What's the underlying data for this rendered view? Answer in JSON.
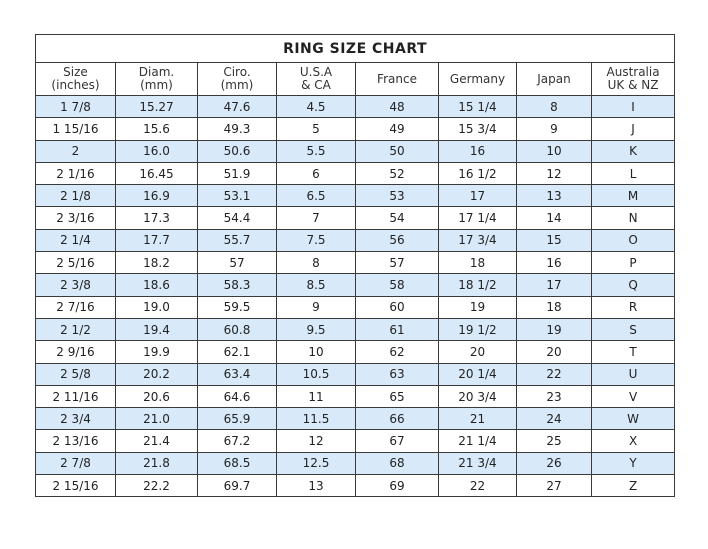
{
  "title": "RING SIZE CHART",
  "headers": [
    [
      "Size",
      "(inches)"
    ],
    [
      "Diam.",
      "(mm)"
    ],
    [
      "Ciro.",
      "(mm)"
    ],
    [
      "U.S.A",
      "& CA"
    ],
    [
      "France",
      ""
    ],
    [
      "Germany",
      ""
    ],
    [
      "Japan",
      ""
    ],
    [
      "Australia",
      "UK & NZ"
    ]
  ],
  "row_highlight_color": "#d8eafa",
  "rows": [
    [
      "1 7/8",
      "15.27",
      "47.6",
      "4.5",
      "48",
      "15 1/4",
      "8",
      "I"
    ],
    [
      "1 15/16",
      "15.6",
      "49.3",
      "5",
      "49",
      "15 3/4",
      "9",
      "J"
    ],
    [
      "2",
      "16.0",
      "50.6",
      "5.5",
      "50",
      "16",
      "10",
      "K"
    ],
    [
      "2 1/16",
      "16.45",
      "51.9",
      "6",
      "52",
      "16 1/2",
      "12",
      "L"
    ],
    [
      "2 1/8",
      "16.9",
      "53.1",
      "6.5",
      "53",
      "17",
      "13",
      "M"
    ],
    [
      "2 3/16",
      "17.3",
      "54.4",
      "7",
      "54",
      "17 1/4",
      "14",
      "N"
    ],
    [
      "2 1/4",
      "17.7",
      "55.7",
      "7.5",
      "56",
      "17 3/4",
      "15",
      "O"
    ],
    [
      "2 5/16",
      "18.2",
      "57",
      "8",
      "57",
      "18",
      "16",
      "P"
    ],
    [
      "2 3/8",
      "18.6",
      "58.3",
      "8.5",
      "58",
      "18 1/2",
      "17",
      "Q"
    ],
    [
      "2 7/16",
      "19.0",
      "59.5",
      "9",
      "60",
      "19",
      "18",
      "R"
    ],
    [
      "2 1/2",
      "19.4",
      "60.8",
      "9.5",
      "61",
      "19 1/2",
      "19",
      "S"
    ],
    [
      "2 9/16",
      "19.9",
      "62.1",
      "10",
      "62",
      "20",
      "20",
      "T"
    ],
    [
      "2 5/8",
      "20.2",
      "63.4",
      "10.5",
      "63",
      "20 1/4",
      "22",
      "U"
    ],
    [
      "2 11/16",
      "20.6",
      "64.6",
      "11",
      "65",
      "20 3/4",
      "23",
      "V"
    ],
    [
      "2 3/4",
      "21.0",
      "65.9",
      "11.5",
      "66",
      "21",
      "24",
      "W"
    ],
    [
      "2 13/16",
      "21.4",
      "67.2",
      "12",
      "67",
      "21 1/4",
      "25",
      "X"
    ],
    [
      "2 7/8",
      "21.8",
      "68.5",
      "12.5",
      "68",
      "21 3/4",
      "26",
      "Y"
    ],
    [
      "2 15/16",
      "22.2",
      "69.7",
      "13",
      "69",
      "22",
      "27",
      "Z"
    ]
  ]
}
